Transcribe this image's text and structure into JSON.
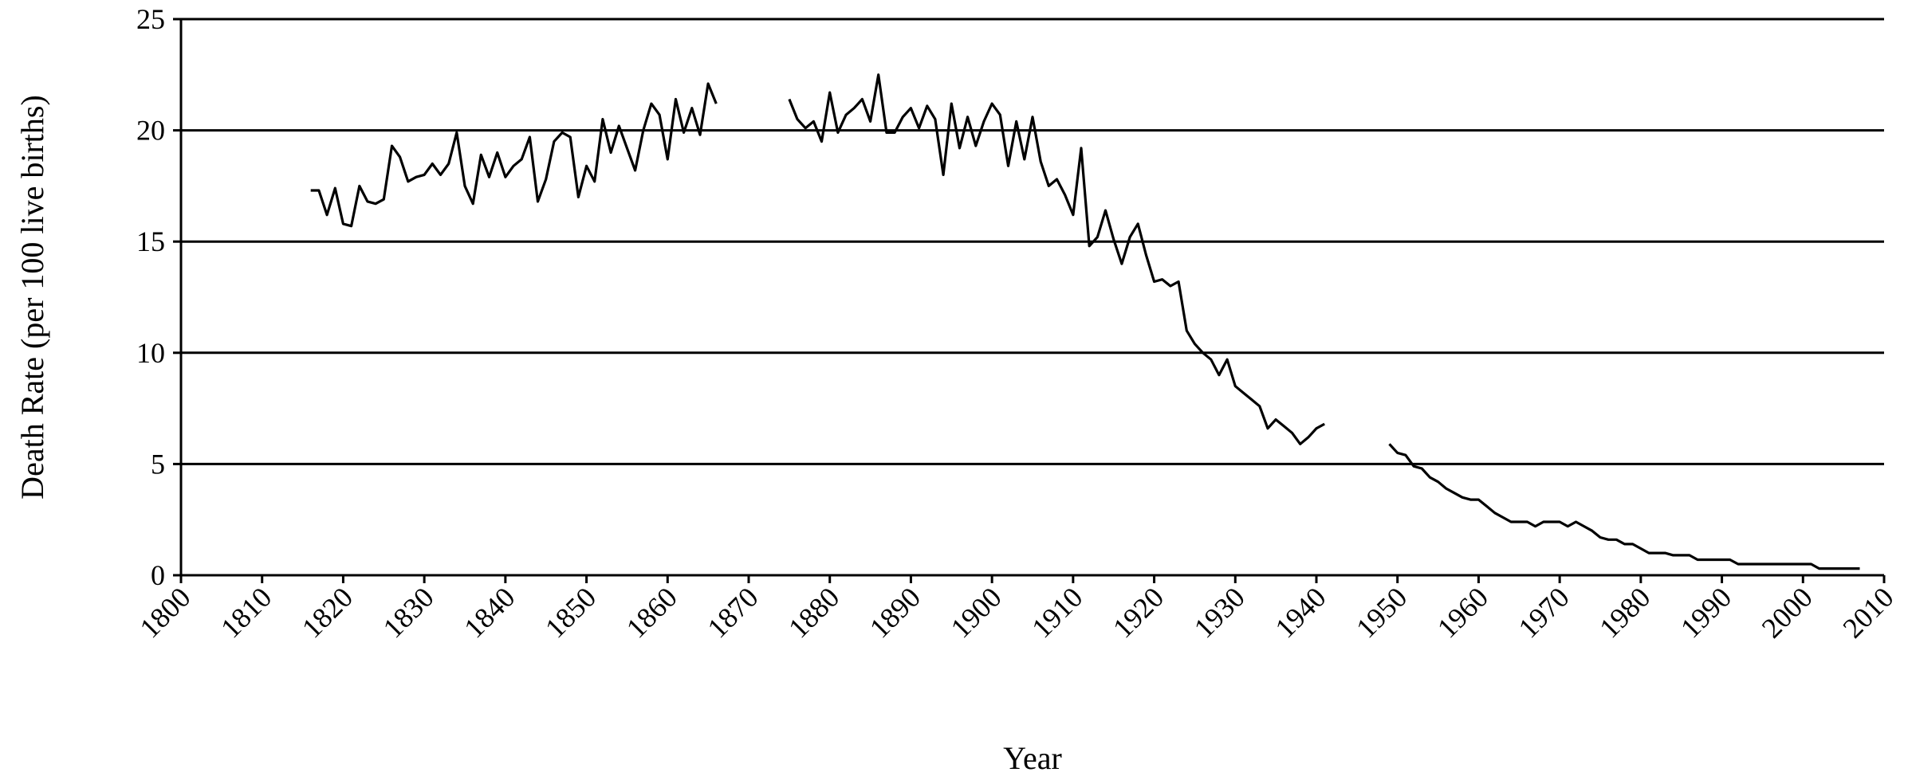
{
  "chart_data": {
    "type": "line",
    "title": "",
    "xlabel": "Year",
    "ylabel": "Death Rate (per  100 live births)",
    "xlim": [
      1800,
      2010
    ],
    "ylim": [
      0,
      25
    ],
    "x_ticks": [
      1800,
      1810,
      1820,
      1830,
      1840,
      1850,
      1860,
      1870,
      1880,
      1890,
      1900,
      1910,
      1920,
      1930,
      1940,
      1950,
      1960,
      1970,
      1980,
      1990,
      2000,
      2010
    ],
    "y_ticks": [
      0,
      5,
      10,
      15,
      20,
      25
    ],
    "grid": "horizontal",
    "legend": "none",
    "line_color": "#000000",
    "series": [
      {
        "segments": [
          {
            "x": [
              1816,
              1817,
              1818,
              1819,
              1820,
              1821,
              1822,
              1823,
              1824,
              1825,
              1826,
              1827,
              1828,
              1829,
              1830,
              1831,
              1832,
              1833,
              1834,
              1835,
              1836,
              1837,
              1838,
              1839,
              1840,
              1841,
              1842,
              1843,
              1844,
              1845,
              1846,
              1847,
              1848,
              1849,
              1850,
              1851,
              1852,
              1853,
              1854,
              1855,
              1856,
              1857,
              1858,
              1859,
              1860,
              1861,
              1862,
              1863,
              1864,
              1865,
              1866
            ],
            "y": [
              17.3,
              17.3,
              16.2,
              17.4,
              15.8,
              15.7,
              17.5,
              16.8,
              16.7,
              16.9,
              19.3,
              18.8,
              17.7,
              17.9,
              18.0,
              18.5,
              18.0,
              18.5,
              19.9,
              17.5,
              16.7,
              18.9,
              17.9,
              19.0,
              17.9,
              18.4,
              18.7,
              19.7,
              16.8,
              17.8,
              19.5,
              19.9,
              19.7,
              17.0,
              18.4,
              17.7,
              20.5,
              19.0,
              20.2,
              19.2,
              18.2,
              20.0,
              21.2,
              20.7,
              18.7,
              21.4,
              19.9,
              21.0,
              19.8,
              22.1,
              21.2
            ]
          },
          {
            "x": [
              1875,
              1876,
              1877,
              1878,
              1879,
              1880,
              1881,
              1882,
              1883,
              1884,
              1885,
              1886,
              1887,
              1888,
              1889,
              1890,
              1891,
              1892,
              1893,
              1894,
              1895,
              1896,
              1897,
              1898,
              1899,
              1900,
              1901,
              1902,
              1903,
              1904,
              1905,
              1906,
              1907,
              1908,
              1909,
              1910,
              1911,
              1912,
              1913,
              1914,
              1915,
              1916,
              1917,
              1918,
              1919,
              1920,
              1921,
              1922,
              1923,
              1924,
              1925,
              1926,
              1927,
              1928,
              1929,
              1930,
              1931,
              1932,
              1933,
              1934,
              1935,
              1936,
              1937,
              1938,
              1939,
              1940,
              1941
            ],
            "y": [
              21.4,
              20.5,
              20.1,
              20.4,
              19.5,
              21.7,
              19.9,
              20.7,
              21.0,
              21.4,
              20.4,
              22.5,
              19.9,
              19.9,
              20.6,
              21.0,
              20.1,
              21.1,
              20.5,
              18.0,
              21.2,
              19.2,
              20.6,
              19.3,
              20.4,
              21.2,
              20.7,
              18.4,
              20.4,
              18.7,
              20.6,
              18.6,
              17.5,
              17.8,
              17.1,
              16.2,
              19.2,
              14.8,
              15.2,
              16.4,
              15.1,
              14.0,
              15.2,
              15.8,
              14.4,
              13.2,
              13.3,
              13.0,
              13.2,
              11.0,
              10.4,
              10.0,
              9.7,
              9.0,
              9.7,
              8.5,
              8.2,
              7.9,
              7.6,
              6.6,
              7.0,
              6.7,
              6.4,
              5.9,
              6.2,
              6.6,
              6.8
            ]
          },
          {
            "x": [
              1949,
              1950,
              1951,
              1952,
              1953,
              1954,
              1955,
              1956,
              1957,
              1958,
              1959,
              1960,
              1961,
              1962,
              1963,
              1964,
              1965,
              1966,
              1967,
              1968,
              1969,
              1970,
              1971,
              1972,
              1973,
              1974,
              1975,
              1976,
              1977,
              1978,
              1979,
              1980,
              1981,
              1982,
              1983,
              1984,
              1985,
              1986,
              1987,
              1988,
              1989,
              1990,
              1991,
              1992,
              1993,
              1994,
              1995,
              1996,
              1997,
              1998,
              1999,
              2000,
              2001,
              2002,
              2003,
              2004,
              2005,
              2006,
              2007
            ],
            "y": [
              5.9,
              5.5,
              5.4,
              4.9,
              4.8,
              4.4,
              4.2,
              3.9,
              3.7,
              3.5,
              3.4,
              3.4,
              3.1,
              2.8,
              2.6,
              2.4,
              2.4,
              2.4,
              2.2,
              2.4,
              2.4,
              2.4,
              2.2,
              2.4,
              2.2,
              2.0,
              1.7,
              1.6,
              1.6,
              1.4,
              1.4,
              1.2,
              1.0,
              1.0,
              1.0,
              0.9,
              0.9,
              0.9,
              0.7,
              0.7,
              0.7,
              0.7,
              0.7,
              0.5,
              0.5,
              0.5,
              0.5,
              0.5,
              0.5,
              0.5,
              0.5,
              0.5,
              0.5,
              0.3,
              0.3,
              0.3,
              0.3,
              0.3,
              0.3
            ]
          }
        ]
      }
    ]
  }
}
